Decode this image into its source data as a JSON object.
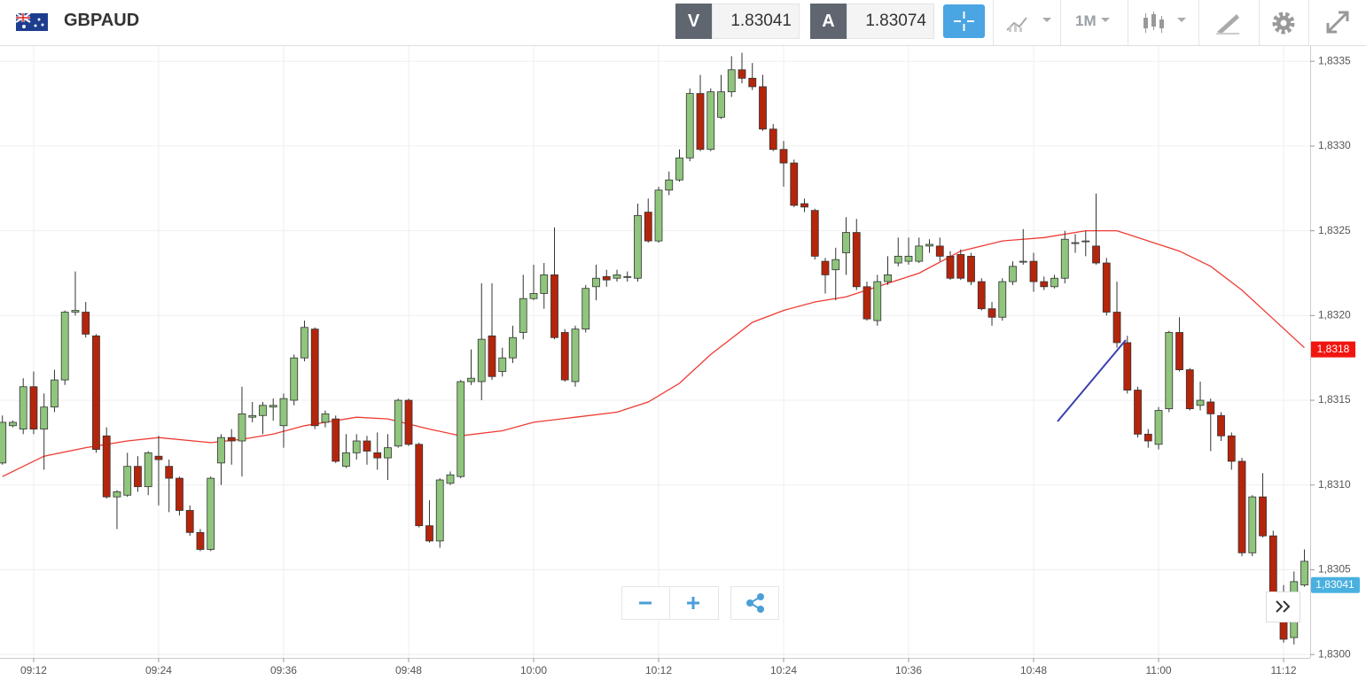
{
  "header": {
    "symbol": "GBPAUD",
    "bid_label": "V",
    "bid": 1.83041,
    "ask_label": "A",
    "ask": 1.83074,
    "timeframe": "1M"
  },
  "chart_data": {
    "type": "candlestick",
    "x": [
      549,
      550,
      551,
      552,
      553,
      554,
      555,
      556,
      557,
      558,
      559,
      560,
      561,
      562,
      563,
      564,
      565,
      566,
      567,
      568,
      569,
      570,
      571,
      572,
      573,
      574,
      575,
      576,
      577,
      578,
      579,
      580,
      581,
      582,
      583,
      584,
      585,
      586,
      587,
      588,
      589,
      590,
      591,
      592,
      593,
      594,
      595,
      596,
      597,
      598,
      599,
      600,
      601,
      602,
      603,
      604,
      605,
      606,
      607,
      608,
      609,
      610,
      611,
      612,
      613,
      614,
      615,
      616,
      617,
      618,
      619,
      620,
      621,
      622,
      623,
      624,
      625,
      626,
      627,
      628,
      629,
      630,
      631,
      632,
      633,
      634,
      635,
      636,
      637,
      638,
      639,
      640,
      641,
      642,
      643,
      644,
      645,
      646,
      647,
      648,
      649,
      650,
      651,
      652,
      653,
      654,
      655,
      656,
      657,
      658,
      659,
      660,
      661,
      662,
      663,
      664,
      665,
      666,
      667,
      668,
      669,
      670,
      671,
      672,
      673,
      674
    ],
    "open": [
      1.83113,
      1.83135,
      1.83133,
      1.83158,
      1.83133,
      1.83146,
      1.83162,
      1.83202,
      1.83202,
      1.83188,
      1.83129,
      1.83093,
      1.83094,
      1.83111,
      1.83099,
      1.83117,
      1.83111,
      1.83104,
      1.83085,
      1.83072,
      1.83062,
      1.83113,
      1.83128,
      1.83126,
      1.8314,
      1.83141,
      1.83146,
      1.83135,
      1.8315,
      1.83175,
      1.83192,
      1.83137,
      1.83139,
      1.83111,
      1.83119,
      1.83126,
      1.83119,
      1.83116,
      1.83123,
      1.8315,
      1.83124,
      1.83076,
      1.83067,
      1.83101,
      1.83105,
      1.83161,
      1.83161,
      1.83188,
      1.83167,
      1.83175,
      1.8319,
      1.8321,
      1.83213,
      1.83224,
      1.8319,
      1.83161,
      1.83192,
      1.83217,
      1.83223,
      1.83222,
      1.83223,
      1.83222,
      1.83261,
      1.83244,
      1.83274,
      1.8328,
      1.83293,
      1.83331,
      1.83298,
      1.83317,
      1.83332,
      1.83345,
      1.8334,
      1.83335,
      1.8331,
      1.83298,
      1.8329,
      1.83266,
      1.83262,
      1.83232,
      1.83227,
      1.83237,
      1.83249,
      1.83217,
      1.83197,
      1.8322,
      1.83231,
      1.83232,
      1.83232,
      1.83241,
      1.83241,
      1.83235,
      1.83236,
      1.83235,
      1.8322,
      1.83204,
      1.83199,
      1.8322,
      1.83232,
      1.83232,
      1.8322,
      1.83217,
      1.83222,
      1.83243,
      1.83244,
      1.83241,
      1.83231,
      1.83202,
      1.83184,
      1.83156,
      1.8313,
      1.83124,
      1.83145,
      1.8319,
      1.83168,
      1.83147,
      1.83149,
      1.83141,
      1.83129,
      1.83114,
      1.8306,
      1.83093,
      1.8307,
      1.83036,
      1.8301,
      1.83041
    ],
    "high": [
      1.83141,
      1.83138,
      1.83163,
      1.83167,
      1.83154,
      1.83168,
      1.83203,
      1.83226,
      1.83208,
      1.83189,
      1.83134,
      1.83097,
      1.83119,
      1.83117,
      1.8312,
      1.83129,
      1.83115,
      1.83105,
      1.83088,
      1.83074,
      1.83105,
      1.8313,
      1.83133,
      1.83158,
      1.83149,
      1.83149,
      1.83151,
      1.83154,
      1.83177,
      1.83197,
      1.83193,
      1.83144,
      1.83141,
      1.8313,
      1.8313,
      1.83129,
      1.83131,
      1.8313,
      1.83151,
      1.83151,
      1.83125,
      1.83091,
      1.83104,
      1.83108,
      1.83162,
      1.8318,
      1.83219,
      1.83219,
      1.83181,
      1.83194,
      1.83224,
      1.8323,
      1.83231,
      1.83252,
      1.83192,
      1.83194,
      1.83218,
      1.8323,
      1.83227,
      1.83227,
      1.83226,
      1.83266,
      1.83269,
      1.83276,
      1.83285,
      1.83298,
      1.83334,
      1.83342,
      1.83334,
      1.83342,
      1.83353,
      1.83355,
      1.83349,
      1.83342,
      1.83313,
      1.83303,
      1.83292,
      1.83269,
      1.83263,
      1.83234,
      1.8324,
      1.83258,
      1.83257,
      1.8322,
      1.83224,
      1.83235,
      1.83246,
      1.83246,
      1.83246,
      1.83245,
      1.83246,
      1.83238,
      1.83239,
      1.83237,
      1.83222,
      1.83208,
      1.83222,
      1.83232,
      1.83251,
      1.83237,
      1.83223,
      1.83224,
      1.8325,
      1.83248,
      1.8325,
      1.83272,
      1.83234,
      1.8322,
      1.83188,
      1.83158,
      1.83133,
      1.83146,
      1.83191,
      1.83199,
      1.83169,
      1.83161,
      1.83151,
      1.83143,
      1.83131,
      1.83116,
      1.83094,
      1.83107,
      1.83073,
      1.83041,
      1.83049,
      1.83062
    ],
    "low": [
      1.83112,
      1.83134,
      1.8313,
      1.8313,
      1.83109,
      1.83143,
      1.83159,
      1.832,
      1.83187,
      1.83119,
      1.83092,
      1.83074,
      1.83093,
      1.83096,
      1.83094,
      1.83088,
      1.83084,
      1.83082,
      1.8307,
      1.83061,
      1.83061,
      1.831,
      1.83112,
      1.83105,
      1.83137,
      1.8313,
      1.83138,
      1.83122,
      1.83147,
      1.83173,
      1.83133,
      1.83134,
      1.83113,
      1.8311,
      1.83115,
      1.83112,
      1.83109,
      1.83103,
      1.83122,
      1.83123,
      1.83075,
      1.83066,
      1.83063,
      1.831,
      1.83104,
      1.83159,
      1.8315,
      1.83162,
      1.83164,
      1.83172,
      1.83186,
      1.83209,
      1.83204,
      1.83186,
      1.83161,
      1.83158,
      1.8319,
      1.83209,
      1.83217,
      1.8322,
      1.8322,
      1.8322,
      1.83243,
      1.83243,
      1.83271,
      1.83279,
      1.83291,
      1.83297,
      1.83297,
      1.83316,
      1.83329,
      1.83337,
      1.83333,
      1.83309,
      1.83297,
      1.83276,
      1.83264,
      1.83261,
      1.83233,
      1.83213,
      1.83209,
      1.83224,
      1.83215,
      1.83197,
      1.83194,
      1.83218,
      1.83229,
      1.8323,
      1.83231,
      1.83237,
      1.83232,
      1.83221,
      1.83221,
      1.83218,
      1.83203,
      1.83194,
      1.83197,
      1.83218,
      1.8323,
      1.83214,
      1.83215,
      1.83216,
      1.83219,
      1.83237,
      1.83235,
      1.8323,
      1.832,
      1.83181,
      1.83154,
      1.83128,
      1.83122,
      1.83121,
      1.83143,
      1.83167,
      1.83144,
      1.83144,
      1.8312,
      1.83126,
      1.83109,
      1.83058,
      1.83058,
      1.83069,
      1.83031,
      1.83007,
      1.83006,
      1.8304
    ],
    "close": [
      1.83137,
      1.83137,
      1.83158,
      1.83133,
      1.83146,
      1.83162,
      1.83202,
      1.83203,
      1.83189,
      1.83121,
      1.83093,
      1.83096,
      1.83111,
      1.83099,
      1.83119,
      1.83115,
      1.83104,
      1.83085,
      1.83072,
      1.83062,
      1.83104,
      1.83128,
      1.83126,
      1.83142,
      1.83141,
      1.83147,
      1.83147,
      1.83151,
      1.83175,
      1.83193,
      1.83135,
      1.83142,
      1.83114,
      1.83119,
      1.83126,
      1.8312,
      1.83116,
      1.83122,
      1.8315,
      1.83124,
      1.83076,
      1.83067,
      1.83103,
      1.83106,
      1.83161,
      1.83163,
      1.83186,
      1.83164,
      1.83175,
      1.83187,
      1.8321,
      1.83213,
      1.83224,
      1.83187,
      1.83162,
      1.83192,
      1.83216,
      1.83222,
      1.83221,
      1.83224,
      1.83223,
      1.83259,
      1.83244,
      1.83274,
      1.8328,
      1.83293,
      1.83331,
      1.83298,
      1.83332,
      1.83332,
      1.83345,
      1.8334,
      1.83335,
      1.8331,
      1.83298,
      1.8329,
      1.83265,
      1.83264,
      1.83235,
      1.83224,
      1.83233,
      1.83249,
      1.83217,
      1.83198,
      1.8322,
      1.83224,
      1.83235,
      1.83235,
      1.83241,
      1.83242,
      1.83235,
      1.83222,
      1.83222,
      1.8322,
      1.83204,
      1.83199,
      1.8322,
      1.83229,
      1.83232,
      1.8322,
      1.83217,
      1.83222,
      1.83245,
      1.83243,
      1.83244,
      1.83231,
      1.83202,
      1.83184,
      1.83156,
      1.8313,
      1.83126,
      1.83144,
      1.8319,
      1.83168,
      1.83145,
      1.8315,
      1.83142,
      1.83129,
      1.83114,
      1.8306,
      1.83093,
      1.8307,
      1.83036,
      1.83009,
      1.83043,
      1.83055
    ],
    "up_color": "#8fc57c",
    "down_color": "#b5250b",
    "ma": {
      "color": "#ee3b33",
      "x": [
        549,
        553,
        557,
        561,
        564,
        569,
        572,
        575,
        578,
        583,
        586,
        590,
        593,
        597,
        600,
        604,
        608,
        611,
        614,
        617,
        621,
        624,
        627,
        630,
        633,
        637,
        641,
        645,
        649,
        653,
        656,
        659,
        662,
        665,
        668,
        671,
        674
      ],
      "values": [
        1.83105,
        1.83117,
        1.83122,
        1.83126,
        1.83128,
        1.83125,
        1.83127,
        1.8313,
        1.83135,
        1.8314,
        1.83139,
        1.83133,
        1.83129,
        1.83132,
        1.83137,
        1.8314,
        1.83143,
        1.83149,
        1.8316,
        1.83177,
        1.83196,
        1.83203,
        1.83208,
        1.83211,
        1.83217,
        1.83225,
        1.83238,
        1.83244,
        1.83246,
        1.8325,
        1.8325,
        1.83244,
        1.83238,
        1.83229,
        1.83215,
        1.83198,
        1.83181
      ]
    },
    "ma_label": {
      "value": 1.8318,
      "label": "1,8318"
    },
    "current_price": {
      "value": 1.83041,
      "label": "1,83041"
    },
    "xlim": [
      548.77,
      674.55
    ],
    "ylim": [
      1.82998,
      1.83359
    ],
    "xticks": [
      {
        "value": 552,
        "label": "09:12"
      },
      {
        "value": 564,
        "label": "09:24"
      },
      {
        "value": 576,
        "label": "09:36"
      },
      {
        "value": 588,
        "label": "09:48"
      },
      {
        "value": 600,
        "label": "10:00"
      },
      {
        "value": 612,
        "label": "10:12"
      },
      {
        "value": 624,
        "label": "10:24"
      },
      {
        "value": 636,
        "label": "10:36"
      },
      {
        "value": 648,
        "label": "10:48"
      },
      {
        "value": 660,
        "label": "11:00"
      },
      {
        "value": 672,
        "label": "11:12"
      }
    ],
    "yticks": [
      {
        "value": 1.83,
        "label": "1,8300"
      },
      {
        "value": 1.8305,
        "label": "1,8305"
      },
      {
        "value": 1.831,
        "label": "1,8310"
      },
      {
        "value": 1.8315,
        "label": "1,8315"
      },
      {
        "value": 1.832,
        "label": "1,8320"
      },
      {
        "value": 1.8325,
        "label": "1,8325"
      },
      {
        "value": 1.833,
        "label": "1,8330"
      },
      {
        "value": 1.8335,
        "label": "1,8335"
      }
    ],
    "grid": true
  }
}
